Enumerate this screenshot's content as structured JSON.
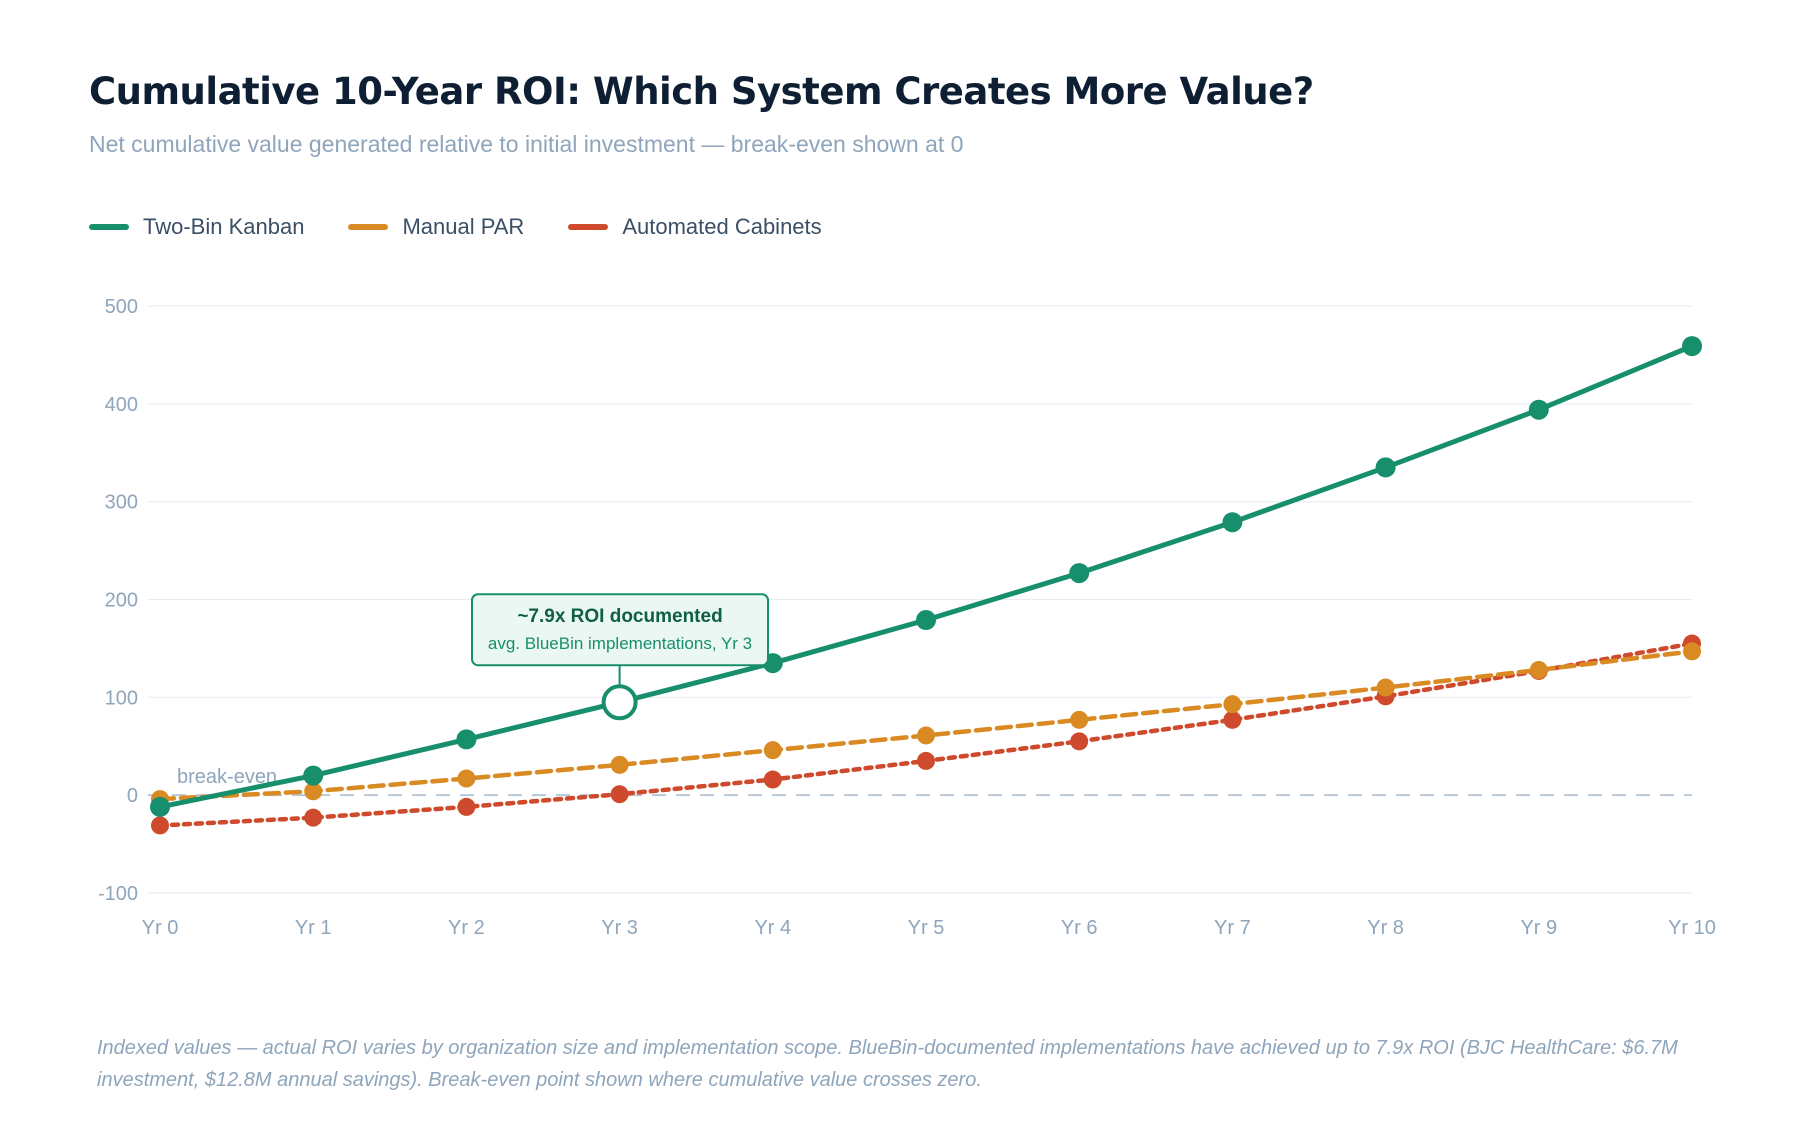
{
  "chart_data": {
    "type": "line",
    "title": "Cumulative 10-Year ROI: Which System Creates More Value?",
    "subtitle": "Net cumulative value generated relative to initial investment — break-even shown at 0",
    "categories": [
      "Yr 0",
      "Yr 1",
      "Yr 2",
      "Yr 3",
      "Yr 4",
      "Yr 5",
      "Yr 6",
      "Yr 7",
      "Yr 8",
      "Yr 9",
      "Yr 10"
    ],
    "series": [
      {
        "name": "Two-Bin Kanban",
        "color": "#178f6c",
        "dash": "solid",
        "values": [
          -12,
          20,
          57,
          95,
          135,
          179,
          227,
          279,
          335,
          394,
          459
        ]
      },
      {
        "name": "Manual PAR",
        "color": "#d98a22",
        "dash": "dashed",
        "values": [
          -4,
          4,
          17,
          31,
          46,
          61,
          77,
          93,
          110,
          128,
          147
        ]
      },
      {
        "name": "Automated Cabinets",
        "color": "#cf4a2c",
        "dash": "dotted",
        "values": [
          -31,
          -23,
          -12,
          1,
          16,
          35,
          55,
          77,
          101,
          127,
          155
        ]
      }
    ],
    "y_ticks": [
      "500",
      "400",
      "300",
      "200",
      "100",
      "0",
      "-100"
    ],
    "ylim": [
      -100,
      500
    ],
    "xlabel": "",
    "ylabel": "",
    "grid": true,
    "legend_position": "top-left",
    "reference_line": {
      "value": 0,
      "label": "break-even"
    },
    "annotation": {
      "series": "Two-Bin Kanban",
      "category": "Yr 3",
      "title": "~7.9x ROI documented",
      "text": "avg. BlueBin implementations, Yr 3"
    },
    "footnote": "Indexed values — actual ROI varies by organization size and implementation scope. BlueBin-documented implementations have achieved up to 7.9x ROI (BJC HealthCare: $6.7M investment, $12.8M annual savings). Break-even point shown where cumulative value crosses zero."
  }
}
